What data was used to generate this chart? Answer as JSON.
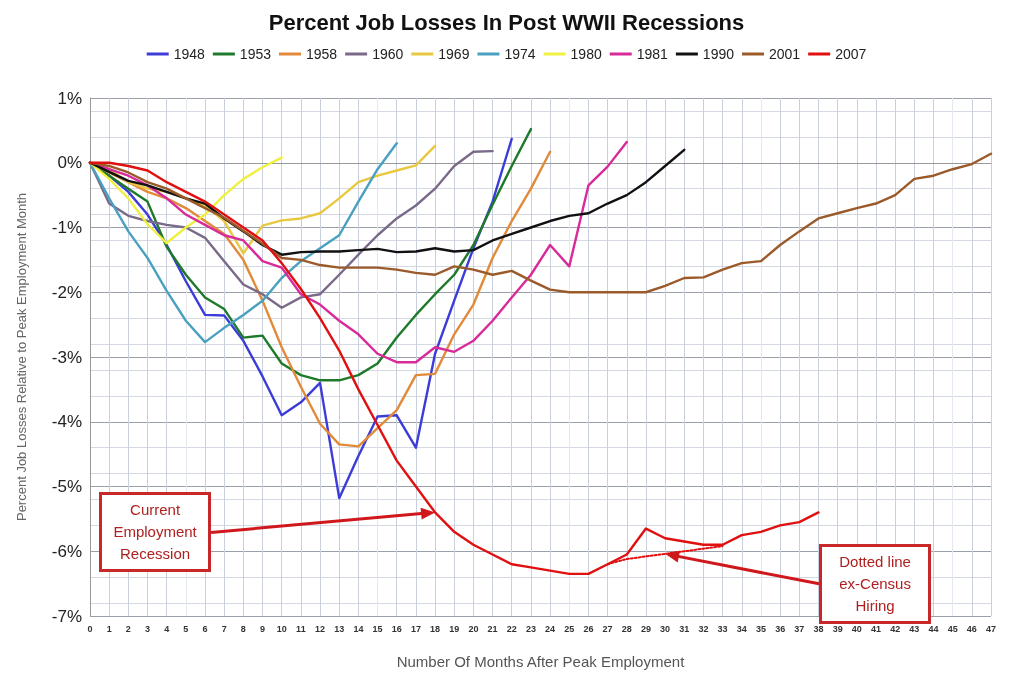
{
  "chart_data": {
    "type": "line",
    "title": "Percent Job Losses In Post WWII Recessions",
    "xlabel": "Number Of Months After Peak Employment",
    "ylabel": "Percent Job Losses Relative to Peak Employment Month",
    "series": [
      {
        "name": "1948",
        "color": "#3c3cd8",
        "x": [
          0,
          1,
          2,
          3,
          4,
          5,
          6,
          7,
          8,
          9,
          10,
          11,
          12,
          13,
          14,
          15,
          16,
          17,
          18,
          19,
          20,
          21,
          22
        ],
        "values": [
          0,
          -0.2,
          -0.45,
          -0.8,
          -1.27,
          -1.83,
          -2.35,
          -2.36,
          -2.75,
          -3.3,
          -3.9,
          -3.7,
          -3.4,
          -5.18,
          -4.53,
          -3.92,
          -3.9,
          -4.4,
          -2.95,
          -2.13,
          -1.32,
          -0.6,
          0.37
        ]
      },
      {
        "name": "1953",
        "color": "#1e7a2a",
        "x": [
          0,
          1,
          2,
          3,
          4,
          5,
          6,
          7,
          8,
          9,
          10,
          11,
          12,
          13,
          14,
          15,
          16,
          17,
          18,
          19,
          20,
          21,
          22,
          23
        ],
        "values": [
          0,
          -0.2,
          -0.4,
          -0.6,
          -1.3,
          -1.73,
          -2.08,
          -2.26,
          -2.7,
          -2.67,
          -3.1,
          -3.28,
          -3.36,
          -3.36,
          -3.28,
          -3.1,
          -2.7,
          -2.35,
          -2.03,
          -1.73,
          -1.27,
          -0.65,
          -0.05,
          0.52
        ]
      },
      {
        "name": "1958",
        "color": "#e08a3a",
        "x": [
          0,
          1,
          2,
          3,
          4,
          5,
          6,
          7,
          8,
          9,
          10,
          11,
          12,
          13,
          14,
          15,
          16,
          17,
          18,
          19,
          20,
          21,
          22,
          23,
          24
        ],
        "values": [
          0,
          -0.15,
          -0.3,
          -0.45,
          -0.55,
          -0.7,
          -0.9,
          -1.1,
          -1.5,
          -2.13,
          -2.85,
          -3.46,
          -4.03,
          -4.35,
          -4.38,
          -4.1,
          -3.82,
          -3.28,
          -3.26,
          -2.65,
          -2.19,
          -1.47,
          -0.9,
          -0.4,
          0.17
        ]
      },
      {
        "name": "1960",
        "color": "#7a6a8a",
        "x": [
          0,
          1,
          2,
          3,
          4,
          5,
          6,
          7,
          8,
          9,
          10,
          11,
          12,
          13,
          14,
          15,
          16,
          17,
          18,
          19,
          20,
          21
        ],
        "values": [
          0,
          -0.63,
          -0.82,
          -0.9,
          -0.96,
          -1.0,
          -1.16,
          -1.52,
          -1.88,
          -2.03,
          -2.24,
          -2.08,
          -2.03,
          -1.73,
          -1.42,
          -1.12,
          -0.86,
          -0.66,
          -0.4,
          -0.05,
          0.17,
          0.18
        ]
      },
      {
        "name": "1969",
        "color": "#e8c840",
        "x": [
          0,
          1,
          2,
          3,
          4,
          5,
          6,
          7,
          8,
          9,
          10,
          11,
          12,
          13,
          14,
          15,
          16,
          17,
          18
        ],
        "values": [
          0,
          -0.1,
          -0.3,
          -0.4,
          -0.45,
          -0.55,
          -0.66,
          -0.9,
          -1.4,
          -0.97,
          -0.89,
          -0.86,
          -0.78,
          -0.55,
          -0.3,
          -0.2,
          -0.12,
          -0.04,
          0.26
        ]
      },
      {
        "name": "1974",
        "color": "#4aa0c0",
        "x": [
          0,
          1,
          2,
          3,
          4,
          5,
          6,
          7,
          8,
          9,
          10,
          11,
          12,
          13,
          14,
          15,
          16
        ],
        "values": [
          0,
          -0.55,
          -1.06,
          -1.47,
          -1.98,
          -2.44,
          -2.77,
          -2.55,
          -2.35,
          -2.13,
          -1.78,
          -1.52,
          -1.32,
          -1.12,
          -0.6,
          -0.1,
          0.3
        ]
      },
      {
        "name": "1980",
        "color": "#f0f040",
        "x": [
          0,
          1,
          2,
          3,
          4,
          5,
          6,
          7,
          8,
          9,
          10
        ],
        "values": [
          0,
          -0.25,
          -0.55,
          -0.95,
          -1.24,
          -1.0,
          -0.8,
          -0.5,
          -0.25,
          -0.07,
          0.08
        ]
      },
      {
        "name": "1981",
        "color": "#d82a9a",
        "x": [
          0,
          1,
          2,
          3,
          4,
          5,
          6,
          7,
          8,
          9,
          10,
          11,
          12,
          13,
          14,
          15,
          16,
          17,
          18,
          19,
          20,
          21,
          22,
          23,
          24,
          25,
          26,
          27,
          28
        ],
        "values": [
          0,
          -0.1,
          -0.2,
          -0.35,
          -0.55,
          -0.8,
          -0.96,
          -1.12,
          -1.2,
          -1.52,
          -1.62,
          -2.03,
          -2.19,
          -2.44,
          -2.65,
          -2.95,
          -3.08,
          -3.08,
          -2.85,
          -2.92,
          -2.75,
          -2.44,
          -2.08,
          -1.73,
          -1.27,
          -1.6,
          -0.35,
          -0.06,
          0.32
        ]
      },
      {
        "name": "1990",
        "color": "#111111",
        "x": [
          0,
          1,
          2,
          3,
          4,
          5,
          6,
          7,
          8,
          9,
          10,
          11,
          12,
          13,
          14,
          15,
          16,
          17,
          18,
          19,
          20,
          21,
          22,
          23,
          24,
          25,
          26,
          27,
          28,
          29,
          30,
          31
        ],
        "values": [
          0,
          -0.14,
          -0.28,
          -0.35,
          -0.45,
          -0.55,
          -0.63,
          -0.86,
          -1.06,
          -1.27,
          -1.42,
          -1.38,
          -1.37,
          -1.37,
          -1.35,
          -1.33,
          -1.38,
          -1.37,
          -1.32,
          -1.37,
          -1.35,
          -1.2,
          -1.1,
          -1.0,
          -0.9,
          -0.82,
          -0.78,
          -0.63,
          -0.5,
          -0.3,
          -0.05,
          0.2
        ]
      },
      {
        "name": "2001",
        "color": "#9a5a2a",
        "x": [
          0,
          1,
          2,
          3,
          4,
          5,
          6,
          7,
          8,
          9,
          10,
          11,
          12,
          13,
          14,
          15,
          16,
          17,
          18,
          19,
          20,
          21,
          22,
          23,
          24,
          25,
          26,
          27,
          28,
          29,
          30,
          31,
          32,
          33,
          34,
          35,
          36,
          37,
          38,
          39,
          40,
          41,
          42,
          43,
          44,
          45,
          46,
          47
        ],
        "values": [
          0,
          -0.05,
          -0.15,
          -0.3,
          -0.4,
          -0.55,
          -0.7,
          -0.85,
          -1.05,
          -1.25,
          -1.47,
          -1.5,
          -1.58,
          -1.62,
          -1.62,
          -1.62,
          -1.65,
          -1.7,
          -1.73,
          -1.6,
          -1.65,
          -1.73,
          -1.67,
          -1.82,
          -1.96,
          -2.0,
          -2.0,
          -2.0,
          -2.0,
          -2.0,
          -1.9,
          -1.78,
          -1.77,
          -1.65,
          -1.55,
          -1.52,
          -1.27,
          -1.06,
          -0.86,
          -0.78,
          -0.7,
          -0.63,
          -0.5,
          -0.25,
          -0.2,
          -0.1,
          -0.02,
          0.14
        ]
      },
      {
        "name": "2007",
        "color": "#e01010",
        "x": [
          0,
          1,
          2,
          3,
          4,
          5,
          6,
          7,
          8,
          9,
          10,
          11,
          12,
          13,
          14,
          15,
          16,
          17,
          18,
          19,
          20,
          21,
          22,
          23,
          24,
          25,
          26,
          27,
          28,
          29,
          30,
          31,
          32,
          33,
          34,
          35,
          36,
          37,
          38
        ],
        "values": [
          0,
          0,
          -0.05,
          -0.12,
          -0.3,
          -0.45,
          -0.6,
          -0.8,
          -1.0,
          -1.2,
          -1.55,
          -1.95,
          -2.4,
          -2.9,
          -3.5,
          -4.05,
          -4.6,
          -5.0,
          -5.4,
          -5.7,
          -5.9,
          -6.05,
          -6.2,
          -6.25,
          -6.3,
          -6.35,
          -6.35,
          -6.2,
          -6.05,
          -5.65,
          -5.8,
          -5.85,
          -5.9,
          -5.9,
          -5.75,
          -5.7,
          -5.6,
          -5.55,
          -5.4
        ]
      },
      {
        "color": "#e01010",
        "line_style": "dotted",
        "x": [
          27,
          28,
          29,
          30,
          31,
          32,
          33
        ],
        "values": [
          -6.2,
          -6.12,
          -6.08,
          -6.04,
          -6.0,
          -5.96,
          -5.92
        ]
      }
    ],
    "xlim": [
      0,
      47
    ],
    "xticks": [
      0,
      1,
      2,
      3,
      4,
      5,
      6,
      7,
      8,
      9,
      10,
      11,
      12,
      13,
      14,
      15,
      16,
      17,
      18,
      19,
      20,
      21,
      22,
      23,
      24,
      25,
      26,
      27,
      28,
      29,
      30,
      31,
      32,
      33,
      34,
      35,
      36,
      37,
      38,
      39,
      40,
      41,
      42,
      43,
      44,
      45,
      46,
      47
    ],
    "ylim": [
      -7,
      1
    ],
    "yticks": [
      {
        "value": -7,
        "label": "-7%"
      },
      {
        "value": -6,
        "label": "-6%"
      },
      {
        "value": -5,
        "label": "-5%"
      },
      {
        "value": -4,
        "label": "-4%"
      },
      {
        "value": -3,
        "label": "-3%"
      },
      {
        "value": -2,
        "label": "-2%"
      },
      {
        "value": -1,
        "label": "-1%"
      },
      {
        "value": 0,
        "label": "0%"
      },
      {
        "value": 1,
        "label": "1%"
      }
    ],
    "annotations": [
      {
        "text": "Current Employment Recession",
        "x": 18,
        "y": -5.4
      },
      "Dotted line ex-Census Hiring"
    ],
    "grid": true,
    "legend": "top",
    "marker": "none",
    "line_style": "solid"
  }
}
